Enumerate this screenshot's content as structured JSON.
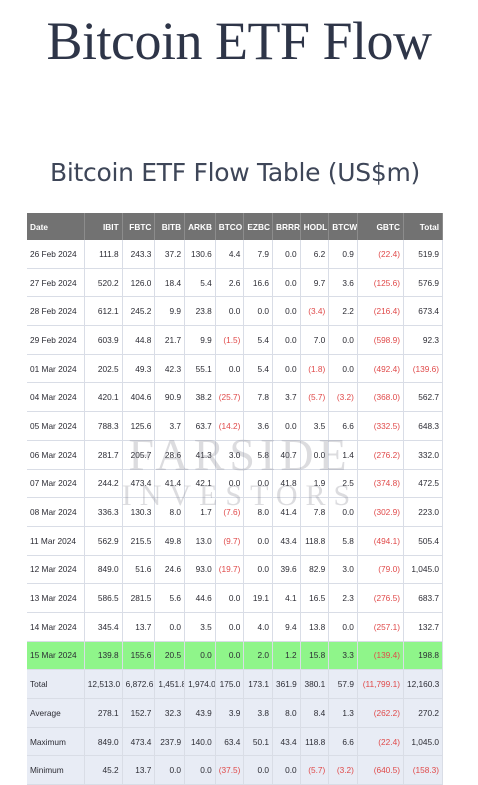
{
  "page": {
    "title": "Bitcoin ETF Flow",
    "subtitle": "Bitcoin ETF Flow Table (US$m)"
  },
  "watermark": {
    "line1": "FARSIDE",
    "line2": "INVESTORS"
  },
  "colors": {
    "header_bg": "#727272",
    "highlight_row": "#8ff58a",
    "summary_bg": "#e8ecf5",
    "negative_text": "#e04a4a"
  },
  "table": {
    "headers": [
      "Date",
      "IBIT",
      "FBTC",
      "BITB",
      "ARKB",
      "BTCO",
      "EZBC",
      "BRRR",
      "HODL",
      "BTCW",
      "GBTC",
      "Total"
    ],
    "rows": [
      [
        "26 Feb 2024",
        "111.8",
        "243.3",
        "37.2",
        "130.6",
        "4.4",
        "7.9",
        "0.0",
        "6.2",
        "0.9",
        "(22.4)",
        "519.9"
      ],
      [
        "27 Feb 2024",
        "520.2",
        "126.0",
        "18.4",
        "5.4",
        "2.6",
        "16.6",
        "0.0",
        "9.7",
        "3.6",
        "(125.6)",
        "576.9"
      ],
      [
        "28 Feb 2024",
        "612.1",
        "245.2",
        "9.9",
        "23.8",
        "0.0",
        "0.0",
        "0.0",
        "(3.4)",
        "2.2",
        "(216.4)",
        "673.4"
      ],
      [
        "29 Feb 2024",
        "603.9",
        "44.8",
        "21.7",
        "9.9",
        "(1.5)",
        "5.4",
        "0.0",
        "7.0",
        "0.0",
        "(598.9)",
        "92.3"
      ],
      [
        "01 Mar 2024",
        "202.5",
        "49.3",
        "42.3",
        "55.1",
        "0.0",
        "5.4",
        "0.0",
        "(1.8)",
        "0.0",
        "(492.4)",
        "(139.6)"
      ],
      [
        "04 Mar 2024",
        "420.1",
        "404.6",
        "90.9",
        "38.2",
        "(25.7)",
        "7.8",
        "3.7",
        "(5.7)",
        "(3.2)",
        "(368.0)",
        "562.7"
      ],
      [
        "05 Mar 2024",
        "788.3",
        "125.6",
        "3.7",
        "63.7",
        "(14.2)",
        "3.6",
        "0.0",
        "3.5",
        "6.6",
        "(332.5)",
        "648.3"
      ],
      [
        "06 Mar 2024",
        "281.7",
        "205.7",
        "28.6",
        "41.3",
        "3.0",
        "5.8",
        "40.7",
        "0.0",
        "1.4",
        "(276.2)",
        "332.0"
      ],
      [
        "07 Mar 2024",
        "244.2",
        "473.4",
        "41.4",
        "42.1",
        "0.0",
        "0.0",
        "41.8",
        "1.9",
        "2.5",
        "(374.8)",
        "472.5"
      ],
      [
        "08 Mar 2024",
        "336.3",
        "130.3",
        "8.0",
        "1.7",
        "(7.6)",
        "8.0",
        "41.4",
        "7.8",
        "0.0",
        "(302.9)",
        "223.0"
      ],
      [
        "11 Mar 2024",
        "562.9",
        "215.5",
        "49.8",
        "13.0",
        "(9.7)",
        "0.0",
        "43.4",
        "118.8",
        "5.8",
        "(494.1)",
        "505.4"
      ],
      [
        "12 Mar 2024",
        "849.0",
        "51.6",
        "24.6",
        "93.0",
        "(19.7)",
        "0.0",
        "39.6",
        "82.9",
        "3.0",
        "(79.0)",
        "1,045.0"
      ],
      [
        "13 Mar 2024",
        "586.5",
        "281.5",
        "5.6",
        "44.6",
        "0.0",
        "19.1",
        "4.1",
        "16.5",
        "2.3",
        "(276.5)",
        "683.7"
      ],
      [
        "14 Mar 2024",
        "345.4",
        "13.7",
        "0.0",
        "3.5",
        "0.0",
        "4.0",
        "9.4",
        "13.8",
        "0.0",
        "(257.1)",
        "132.7"
      ],
      [
        "15 Mar 2024",
        "139.8",
        "155.6",
        "20.5",
        "0.0",
        "0.0",
        "2.0",
        "1.2",
        "15.8",
        "3.3",
        "(139.4)",
        "198.8"
      ]
    ],
    "highlight_row_index": 14,
    "summary": [
      [
        "Total",
        "12,513.0",
        "6,872.6",
        "1,451.8",
        "1,974.0",
        "175.0",
        "173.1",
        "361.9",
        "380.1",
        "57.9",
        "(11,799.1)",
        "12,160.3"
      ],
      [
        "Average",
        "278.1",
        "152.7",
        "32.3",
        "43.9",
        "3.9",
        "3.8",
        "8.0",
        "8.4",
        "1.3",
        "(262.2)",
        "270.2"
      ],
      [
        "Maximum",
        "849.0",
        "473.4",
        "237.9",
        "140.0",
        "63.4",
        "50.1",
        "43.4",
        "118.8",
        "6.6",
        "(22.4)",
        "1,045.0"
      ],
      [
        "Minimum",
        "45.2",
        "13.7",
        "0.0",
        "0.0",
        "(37.5)",
        "0.0",
        "0.0",
        "(5.7)",
        "(3.2)",
        "(640.5)",
        "(158.3)"
      ]
    ]
  }
}
